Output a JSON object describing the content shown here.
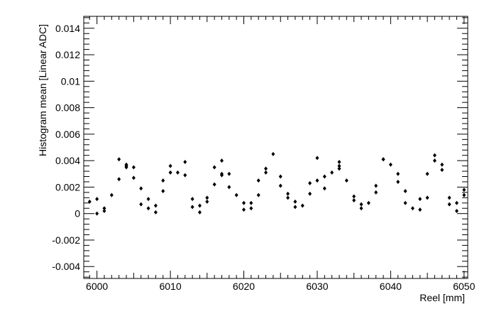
{
  "chart_data": {
    "type": "scatter",
    "title": "",
    "xlabel": "Reel [mm]",
    "ylabel": "Histogram mean [Linear ADC]",
    "xlim": [
      5998.2,
      6050.5
    ],
    "ylim": [
      -0.0049,
      0.0149
    ],
    "x_ticks": [
      "6000",
      "6010",
      "6020",
      "6030",
      "6040",
      "6050"
    ],
    "y_ticks": [
      "-0.004",
      "-0.002",
      "0",
      "0.002",
      "0.004",
      "0.006",
      "0.008",
      "0.01",
      "0.012",
      "0.014"
    ],
    "grid": false,
    "legend": "none",
    "marker_color": "#000000",
    "series": [
      {
        "name": "",
        "x": [
          5999,
          6000,
          6000,
          6001,
          6001,
          6002,
          6003,
          6003,
          6004,
          6004,
          6004,
          6005,
          6005,
          6006,
          6006,
          6007,
          6007,
          6008,
          6008,
          6009,
          6009,
          6010,
          6010,
          6011,
          6012,
          6012,
          6013,
          6013,
          6014,
          6014,
          6015,
          6015,
          6016,
          6016,
          6017,
          6017,
          6017,
          6018,
          6018,
          6019,
          6020,
          6020,
          6021,
          6021,
          6022,
          6022,
          6023,
          6023,
          6024,
          6025,
          6025,
          6026,
          6026,
          6027,
          6027,
          6028,
          6029,
          6029,
          6030,
          6030,
          6031,
          6031,
          6032,
          6033,
          6033,
          6033,
          6034,
          6035,
          6035,
          6036,
          6036,
          6037,
          6038,
          6038,
          6039,
          6039,
          6040,
          6041,
          6041,
          6042,
          6042,
          6043,
          6044,
          6044,
          6045,
          6045,
          6046,
          6046,
          6047,
          6047,
          6048,
          6048,
          6049,
          6049,
          6050,
          6050
        ],
        "y": [
          0.0009,
          0.0011,
          0.0,
          0.0004,
          0.0002,
          0.0014,
          0.0041,
          0.0026,
          0.0037,
          0.0036,
          0.0035,
          0.0035,
          0.0027,
          0.0019,
          0.0007,
          0.0011,
          0.0004,
          0.0006,
          0.0001,
          0.0025,
          0.0017,
          0.0036,
          0.0031,
          0.0031,
          0.0039,
          0.0029,
          0.0011,
          0.0005,
          0.0006,
          0.0001,
          0.0012,
          0.0009,
          0.0035,
          0.0022,
          0.004,
          0.003,
          0.0029,
          0.003,
          0.002,
          0.0014,
          0.0008,
          0.0003,
          0.0008,
          0.0004,
          0.0025,
          0.0014,
          0.0034,
          0.0031,
          0.0045,
          0.0028,
          0.0021,
          0.0015,
          0.0012,
          0.0009,
          0.0005,
          0.0006,
          0.0023,
          0.0015,
          0.0042,
          0.0025,
          0.0028,
          0.0019,
          0.0031,
          0.0039,
          0.0036,
          0.0034,
          0.0025,
          0.0013,
          0.001,
          0.0007,
          0.0004,
          0.0008,
          0.0021,
          0.0016,
          0.0041,
          0.0041,
          0.0037,
          0.003,
          0.0024,
          0.0017,
          0.0008,
          0.0004,
          0.0011,
          0.0003,
          0.003,
          0.0012,
          0.0044,
          0.004,
          0.0037,
          0.0033,
          0.0012,
          0.0007,
          0.0008,
          0.0002,
          0.0018,
          0.0014
        ]
      }
    ]
  }
}
